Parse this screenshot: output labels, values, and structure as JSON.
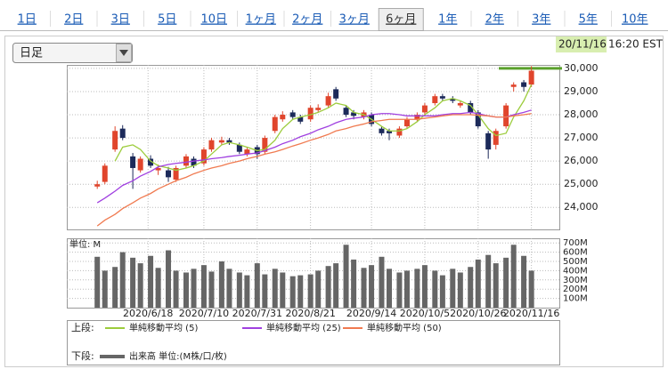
{
  "header": {
    "tabs": [
      "1日",
      "2日",
      "3日",
      "5日",
      "10日",
      "1ヶ月",
      "2ヶ月",
      "3ヶ月",
      "6ヶ月",
      "1年",
      "2年",
      "3年",
      "5年",
      "10年"
    ],
    "selected_index": 8
  },
  "dropdown": "日足",
  "timestamp": {
    "date": "20/11/16",
    "time": "16:20 EST"
  },
  "legend": {
    "upper": "上段:",
    "lower": "下段:"
  },
  "chart_data": [
    {
      "type": "candlestick",
      "x": [
        "2020-05-29",
        "2020-06-01",
        "2020-06-05",
        "2020-06-08",
        "2020-06-12",
        "2020-06-15",
        "2020-06-19",
        "2020-06-22",
        "2020-06-26",
        "2020-06-29",
        "2020-07-03",
        "2020-07-06",
        "2020-07-10",
        "2020-07-13",
        "2020-07-17",
        "2020-07-20",
        "2020-07-24",
        "2020-07-27",
        "2020-07-31",
        "2020-08-03",
        "2020-08-07",
        "2020-08-10",
        "2020-08-14",
        "2020-08-17",
        "2020-08-21",
        "2020-08-24",
        "2020-08-28",
        "2020-08-31",
        "2020-09-04",
        "2020-09-07",
        "2020-09-11",
        "2020-09-14",
        "2020-09-18",
        "2020-09-21",
        "2020-09-25",
        "2020-09-28",
        "2020-10-02",
        "2020-10-05",
        "2020-10-09",
        "2020-10-12",
        "2020-10-16",
        "2020-10-19",
        "2020-10-23",
        "2020-10-26",
        "2020-10-30",
        "2020-11-02",
        "2020-11-06",
        "2020-11-09",
        "2020-11-13",
        "2020-11-16"
      ],
      "open": [
        24900,
        25100,
        26500,
        27400,
        26200,
        25600,
        26100,
        25600,
        25600,
        25200,
        25800,
        26100,
        25900,
        26500,
        26800,
        26900,
        26700,
        26300,
        26600,
        26400,
        27300,
        27800,
        28100,
        27900,
        27800,
        28200,
        28400,
        29100,
        28300,
        28100,
        27900,
        28000,
        27400,
        27300,
        27100,
        27500,
        27800,
        28100,
        28500,
        28800,
        28700,
        28400,
        28500,
        28100,
        27200,
        26700,
        27500,
        29200,
        29400,
        29300
      ],
      "high": [
        25150,
        25900,
        27500,
        27550,
        26350,
        26200,
        26250,
        25850,
        25750,
        25800,
        26300,
        26200,
        26600,
        27000,
        27050,
        27000,
        26800,
        26600,
        26700,
        27100,
        28000,
        28150,
        28200,
        28000,
        28400,
        28450,
        28950,
        29200,
        28400,
        28200,
        28200,
        28100,
        27500,
        27400,
        27500,
        27900,
        28100,
        28500,
        28900,
        28900,
        28800,
        28600,
        28600,
        28200,
        27300,
        27400,
        28500,
        29400,
        29500,
        30100
      ],
      "low": [
        24800,
        25000,
        26400,
        26900,
        24800,
        25500,
        25700,
        25400,
        25100,
        25100,
        25700,
        25700,
        25800,
        26400,
        26700,
        26700,
        26300,
        26200,
        26100,
        26300,
        27200,
        27700,
        27800,
        27600,
        27700,
        28100,
        28300,
        28600,
        27900,
        27800,
        27800,
        27500,
        27100,
        26900,
        27000,
        27400,
        27700,
        28000,
        28400,
        28600,
        28500,
        28300,
        28000,
        27400,
        26100,
        26500,
        27400,
        29000,
        29000,
        29200
      ],
      "close": [
        25000,
        25800,
        27300,
        27000,
        25700,
        26100,
        25800,
        25700,
        25300,
        25700,
        26200,
        25800,
        26500,
        26900,
        26900,
        26800,
        26400,
        26500,
        26300,
        27000,
        27900,
        28000,
        27900,
        27700,
        28300,
        28300,
        28800,
        28700,
        28000,
        27950,
        28100,
        27600,
        27200,
        27200,
        27400,
        27800,
        28000,
        28400,
        28800,
        28700,
        28600,
        28500,
        28100,
        27500,
        26500,
        27300,
        28400,
        29300,
        29200,
        29900
      ],
      "up_color": "#e0452c",
      "down_color": "#1c2a5a",
      "lines": [
        {
          "name": "単純移動平均 (5)",
          "color": "#9ccc3c",
          "values": [
            null,
            null,
            26000,
            26600,
            26700,
            26500,
            26000,
            25800,
            25700,
            25600,
            25700,
            25800,
            26000,
            26300,
            26700,
            26800,
            26700,
            26600,
            26450,
            26500,
            26900,
            27400,
            27800,
            27900,
            28000,
            28100,
            28300,
            28500,
            28400,
            28100,
            28000,
            27800,
            27500,
            27300,
            27300,
            27400,
            27700,
            28000,
            28300,
            28600,
            28700,
            28600,
            28400,
            28000,
            27400,
            27100,
            27200,
            27900,
            28600,
            29300
          ]
        },
        {
          "name": "単純移動平均 (25)",
          "color": "#a040e0",
          "values": [
            24200,
            24400,
            24700,
            24950,
            25150,
            25350,
            25550,
            25750,
            25850,
            25900,
            25950,
            26000,
            26050,
            26100,
            26150,
            26200,
            26250,
            26300,
            26350,
            26450,
            26600,
            26750,
            26900,
            27050,
            27200,
            27350,
            27500,
            27650,
            27800,
            27850,
            27900,
            28000,
            28050,
            28050,
            28000,
            27950,
            27950,
            27950,
            27950,
            28000,
            28050,
            28050,
            28100,
            28050,
            27950,
            27900,
            27900,
            28000,
            28100,
            28200
          ]
        },
        {
          "name": "単純移動平均 (50)",
          "color": "#f07a50",
          "values": [
            23200,
            23450,
            23700,
            23950,
            24200,
            24400,
            24600,
            24800,
            25000,
            25150,
            25300,
            25450,
            25600,
            25700,
            25800,
            25900,
            26000,
            26100,
            26200,
            26300,
            26400,
            26500,
            26650,
            26750,
            26900,
            27000,
            27150,
            27300,
            27400,
            27500,
            27600,
            27700,
            27750,
            27800,
            27800,
            27800,
            27800,
            27850,
            27900,
            27950,
            28000,
            28000,
            28000,
            27980,
            27950,
            27900,
            27900,
            27950,
            28000,
            28050
          ]
        }
      ],
      "reference_line": {
        "value": 30000,
        "color": "#5aa02c"
      },
      "xlim": [
        "2020-05-17",
        "2020-11-27"
      ],
      "ylim": [
        23050,
        30150
      ],
      "yticks": [
        {
          "value": 24000,
          "label": "24,000"
        },
        {
          "value": 25000,
          "label": "25,000"
        },
        {
          "value": 26000,
          "label": "26,000"
        },
        {
          "value": 27000,
          "label": "27,000"
        },
        {
          "value": 28000,
          "label": "28,000"
        },
        {
          "value": 29000,
          "label": "29,000"
        },
        {
          "value": 30000,
          "label": "30,000"
        }
      ],
      "grid": true
    },
    {
      "type": "bar",
      "unit_label": "単位: M",
      "series": [
        {
          "name": "出来高 単位:(M株/口/枚)",
          "color": "#666666",
          "values": [
            550,
            400,
            440,
            600,
            540,
            480,
            560,
            430,
            620,
            400,
            380,
            420,
            460,
            390,
            500,
            420,
            380,
            350,
            480,
            360,
            420,
            380,
            340,
            350,
            360,
            400,
            450,
            480,
            680,
            520,
            430,
            460,
            550,
            420,
            380,
            400,
            420,
            460,
            400,
            350,
            420,
            380,
            440,
            520,
            570,
            480,
            540,
            680,
            560,
            400
          ]
        }
      ],
      "xlim": [
        "2020-05-17",
        "2020-11-27"
      ],
      "xticks": [
        {
          "value": "2020-06-18",
          "label": "2020/6/18"
        },
        {
          "value": "2020-07-10",
          "label": "2020/7/10"
        },
        {
          "value": "2020-07-31",
          "label": "2020/7/31"
        },
        {
          "value": "2020-08-21",
          "label": "2020/8/21"
        },
        {
          "value": "2020-09-14",
          "label": "2020/9/14"
        },
        {
          "value": "2020-10-05",
          "label": "2020/10/5"
        },
        {
          "value": "2020-10-26",
          "label": "2020/10/26"
        },
        {
          "value": "2020-11-16",
          "label": "2020/11/16"
        }
      ],
      "ylim": [
        0,
        750
      ],
      "yticks": [
        {
          "value": 100,
          "label": "100M"
        },
        {
          "value": 200,
          "label": "200M"
        },
        {
          "value": 300,
          "label": "300M"
        },
        {
          "value": 400,
          "label": "400M"
        },
        {
          "value": 500,
          "label": "500M"
        },
        {
          "value": 600,
          "label": "600M"
        },
        {
          "value": 700,
          "label": "700M"
        }
      ],
      "grid": true
    }
  ]
}
